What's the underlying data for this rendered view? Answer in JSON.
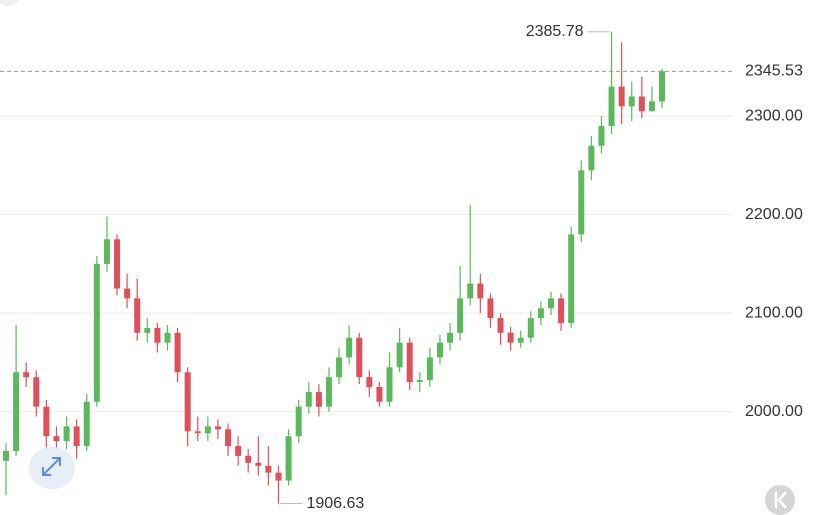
{
  "chart_data": {
    "type": "candlestick",
    "up_color": "#5cb85c",
    "down_color": "#e0505a",
    "ylim": [
      1895,
      2418
    ],
    "yticks": [
      {
        "value": 2000,
        "label": "2000.00"
      },
      {
        "value": 2100,
        "label": "2100.00"
      },
      {
        "value": 2200,
        "label": "2200.00"
      },
      {
        "value": 2300,
        "label": "2300.00"
      }
    ],
    "grid": true,
    "open": [
      1950,
      1960,
      2040,
      2035,
      2005,
      1975,
      1970,
      1985,
      1965,
      2010,
      2150,
      2175,
      2125,
      2115,
      2080,
      2085,
      2070,
      2080,
      2040,
      1980,
      1978,
      1985,
      1982,
      1965,
      1955,
      1948,
      1945,
      1938,
      1930,
      1975,
      2005,
      2020,
      2005,
      2035,
      2055,
      2075,
      2035,
      2025,
      2010,
      2045,
      2070,
      2030,
      2032,
      2055,
      2070,
      2080,
      2115,
      2130,
      2115,
      2095,
      2080,
      2070,
      2075,
      2095,
      2105,
      2115,
      2090,
      2180,
      2245,
      2270,
      2290,
      2330,
      2310,
      2320,
      2305,
      2315
    ],
    "high": [
      1968,
      2088,
      2050,
      2042,
      2012,
      1985,
      1995,
      1992,
      2018,
      2158,
      2198,
      2180,
      2140,
      2135,
      2095,
      2090,
      2088,
      2085,
      2045,
      1995,
      1995,
      1992,
      1988,
      1975,
      1962,
      1975,
      1965,
      1945,
      1982,
      2012,
      2030,
      2028,
      2045,
      2065,
      2088,
      2080,
      2042,
      2030,
      2060,
      2085,
      2075,
      2040,
      2065,
      2078,
      2090,
      2148,
      2210,
      2140,
      2120,
      2100,
      2086,
      2082,
      2102,
      2112,
      2122,
      2120,
      2188,
      2255,
      2280,
      2300,
      2385.78,
      2375,
      2335,
      2340,
      2330,
      2348
    ],
    "low": [
      1915,
      1955,
      2025,
      1995,
      1955,
      1955,
      1962,
      1952,
      1960,
      2005,
      2142,
      2118,
      2105,
      2072,
      2070,
      2060,
      2062,
      2030,
      1965,
      1970,
      1970,
      1972,
      1955,
      1945,
      1938,
      1935,
      1925,
      1906.63,
      1925,
      1968,
      1998,
      1995,
      2000,
      2028,
      2048,
      2028,
      2015,
      2005,
      2005,
      2040,
      2022,
      2020,
      2025,
      2048,
      2062,
      2072,
      2108,
      2100,
      2085,
      2068,
      2062,
      2065,
      2070,
      2088,
      2098,
      2082,
      2085,
      2172,
      2235,
      2262,
      2282,
      2292,
      2295,
      2298,
      2305,
      2308
    ],
    "close": [
      1960,
      2040,
      2035,
      2005,
      1975,
      1970,
      1985,
      1965,
      2010,
      2150,
      2175,
      2125,
      2115,
      2080,
      2085,
      2070,
      2080,
      2040,
      1980,
      1978,
      1985,
      1982,
      1965,
      1955,
      1948,
      1945,
      1938,
      1930,
      1975,
      2005,
      2020,
      2005,
      2035,
      2055,
      2075,
      2035,
      2025,
      2010,
      2045,
      2070,
      2030,
      2032,
      2055,
      2070,
      2080,
      2115,
      2130,
      2115,
      2095,
      2080,
      2070,
      2075,
      2095,
      2105,
      2115,
      2090,
      2180,
      2245,
      2270,
      2290,
      2330,
      2310,
      2320,
      2305,
      2315,
      2345.53
    ],
    "max_label": 2385.78,
    "min_label": 1906.63,
    "last_price": 2345.53
  }
}
